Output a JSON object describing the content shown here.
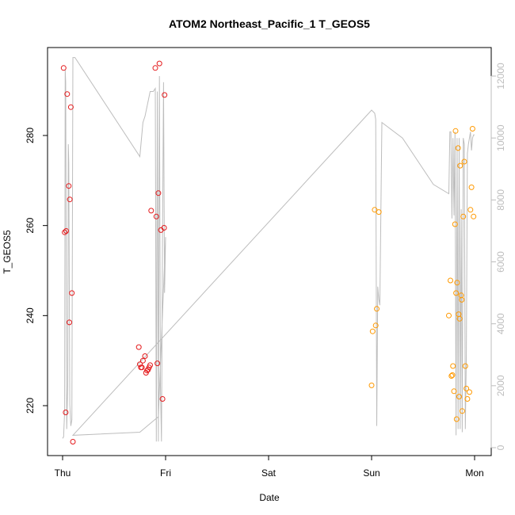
{
  "chart_data": {
    "type": "scatter",
    "title": "ATOM2 Northeast_Pacific_1 T_GEOS5",
    "xlabel": "Date",
    "ylabel": "T_GEOS5",
    "y2label": "",
    "x_ticks": [
      "Thu",
      "Fri",
      "Sat",
      "Sun",
      "Mon"
    ],
    "x_range_days": [
      0,
      4
    ],
    "ylim": [
      210,
      297
    ],
    "y_ticks": [
      220,
      240,
      260,
      280
    ],
    "y2lim": [
      -100,
      12500
    ],
    "y2_ticks": [
      0,
      2000,
      4000,
      6000,
      8000,
      10000,
      12000
    ],
    "grid": false,
    "legend": "none",
    "colors": {
      "series_red": "#e41a1c",
      "series_orange": "#ff9900",
      "altitude_line": "#bdbdbd",
      "axis": "#000000",
      "right_axis": "#bdbdbd"
    },
    "series": [
      {
        "color": "#e41a1c",
        "x": [
          0.01,
          0.02,
          0.03,
          0.035,
          0.045,
          0.06,
          0.065,
          0.07,
          0.08,
          0.09,
          0.1,
          0.74,
          0.75,
          0.76,
          0.77,
          0.78,
          0.8,
          0.81,
          0.82,
          0.83,
          0.84,
          0.85,
          0.86,
          0.9,
          0.91,
          0.92,
          0.93,
          0.94,
          0.955,
          0.97,
          0.985,
          0.99
        ],
        "values": [
          295,
          258.5,
          218.5,
          258.8,
          289.2,
          268.8,
          238.5,
          265.8,
          286.3,
          245,
          212,
          233,
          229.2,
          228.5,
          228.5,
          230,
          231,
          227.3,
          227.8,
          228,
          228.5,
          229,
          263.3,
          295,
          262,
          229.4,
          267.2,
          296,
          259,
          221.5,
          259.5,
          289
        ]
      },
      {
        "color": "#ff9900",
        "x": [
          3.0,
          3.01,
          3.03,
          3.04,
          3.05,
          3.07,
          3.75,
          3.765,
          3.775,
          3.785,
          3.79,
          3.8,
          3.81,
          3.815,
          3.82,
          3.825,
          3.83,
          3.84,
          3.845,
          3.85,
          3.855,
          3.86,
          3.87,
          3.875,
          3.88,
          3.89,
          3.9,
          3.91,
          3.92,
          3.93,
          3.95,
          3.96,
          3.97,
          3.98,
          3.99
        ],
        "values": [
          224.5,
          236.5,
          263.5,
          237.8,
          241.5,
          263,
          240,
          247.8,
          226.6,
          226.8,
          228.8,
          223.2,
          260.3,
          281,
          245,
          217,
          247.3,
          277.2,
          240.3,
          222,
          239.3,
          273.3,
          244.5,
          243.5,
          218.8,
          262,
          274.2,
          228.8,
          223.8,
          221.5,
          223,
          263.5,
          268.5,
          281.5,
          262
        ]
      }
    ],
    "altitude_line": {
      "color": "#bdbdbd",
      "x": [
        0.0,
        0.01,
        0.02,
        0.025,
        0.03,
        0.04,
        0.05,
        0.055,
        0.06,
        0.07,
        0.08,
        0.09,
        0.1,
        0.11,
        0.115,
        0.12,
        0.75,
        0.78,
        0.8,
        0.85,
        0.88,
        0.9,
        0.91,
        0.92,
        0.93,
        0.94,
        0.95,
        0.96,
        0.97,
        0.98,
        0.99,
        1.0,
        0.93,
        0.75,
        0.1,
        3.0,
        3.03,
        3.04,
        3.05,
        3.06,
        3.07,
        3.08,
        3.1,
        3.3,
        3.6,
        3.75,
        3.76,
        3.77,
        3.78,
        3.79,
        3.8,
        3.81,
        3.82,
        3.83,
        3.84,
        3.85,
        3.86,
        3.87,
        3.88,
        3.89,
        3.9,
        3.91,
        3.92,
        3.93,
        3.94,
        3.95,
        3.96,
        3.97,
        3.98,
        3.99,
        4.0
      ],
      "values": [
        300,
        350,
        1200,
        12200,
        11800,
        600,
        2000,
        9800,
        9200,
        1400,
        700,
        900,
        12600,
        12600,
        12600,
        12600,
        9400,
        10500,
        10700,
        11500,
        11500,
        11600,
        200,
        11500,
        200,
        12000,
        2000,
        200,
        6600,
        11800,
        5000,
        6800,
        1000,
        500,
        400,
        10900,
        10800,
        10600,
        700,
        5200,
        4800,
        4600,
        10500,
        10000,
        8500,
        8200,
        10200,
        10200,
        7400,
        10000,
        7500,
        10200,
        400,
        10000,
        600,
        10000,
        600,
        7700,
        500,
        10000,
        9800,
        600,
        3000,
        9500,
        9800,
        10000,
        10200,
        9600,
        10000,
        10100,
        10100
      ]
    }
  }
}
